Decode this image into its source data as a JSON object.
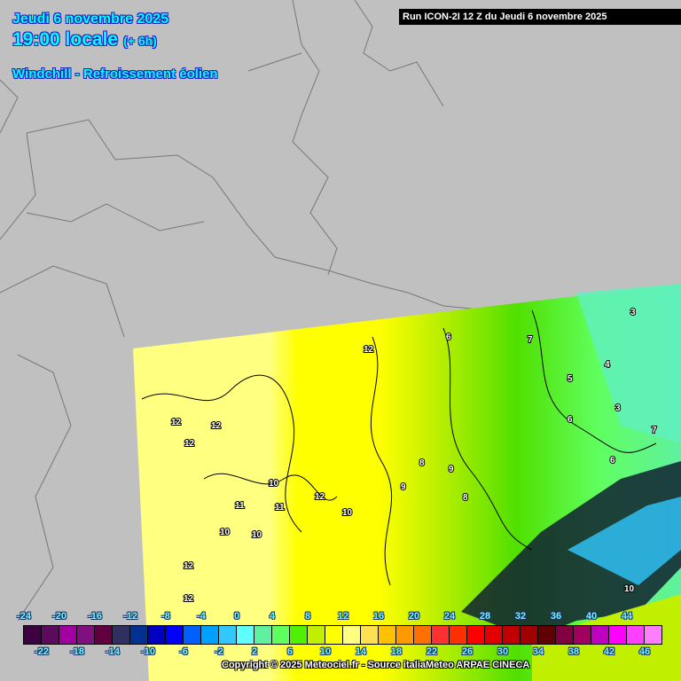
{
  "header": {
    "date": "Jeudi 6 novembre 2025",
    "time": "19:00 locale",
    "lead": "(+ 6h)",
    "parameter": "Windchill - Refroissement éolien",
    "run": "Run ICON-2I 12 Z du Jeudi 6 novembre 2025"
  },
  "colorbar": {
    "values": [
      -24,
      -22,
      -20,
      -18,
      -16,
      -14,
      -12,
      -10,
      -8,
      -6,
      -4,
      -2,
      0,
      2,
      4,
      6,
      8,
      10,
      12,
      14,
      16,
      18,
      20,
      22,
      24,
      26,
      28,
      30,
      32,
      34,
      36,
      38,
      40,
      42,
      44,
      46
    ],
    "colors": [
      "#3d0040",
      "#5c0a5c",
      "#a000a0",
      "#801080",
      "#600040",
      "#303060",
      "#003090",
      "#0000c0",
      "#0000ff",
      "#0060ff",
      "#00a0ff",
      "#30c8ff",
      "#60ffff",
      "#60f0a0",
      "#60ff60",
      "#50f000",
      "#c0f000",
      "#ffff00",
      "#ffff80",
      "#ffe050",
      "#ffc000",
      "#ff9900",
      "#ff7000",
      "#ff3030",
      "#ff3000",
      "#ff0000",
      "#e00000",
      "#c00000",
      "#a00000",
      "#600000",
      "#800040",
      "#a00060",
      "#c000c0",
      "#ff00ff",
      "#ff40ff",
      "#ff80ff"
    ]
  },
  "map_labels": [
    "12",
    "12",
    "12",
    "12",
    "12",
    "10",
    "11",
    "11",
    "10",
    "10",
    "12",
    "12",
    "6",
    "6",
    "5",
    "4",
    "3",
    "3",
    "9",
    "8",
    "7",
    "7",
    "6",
    "8",
    "9",
    "10",
    "10"
  ],
  "copyright": "Copyright © 2025 Meteociel.fr - Source italiaMeteo ARPAE CINECA"
}
